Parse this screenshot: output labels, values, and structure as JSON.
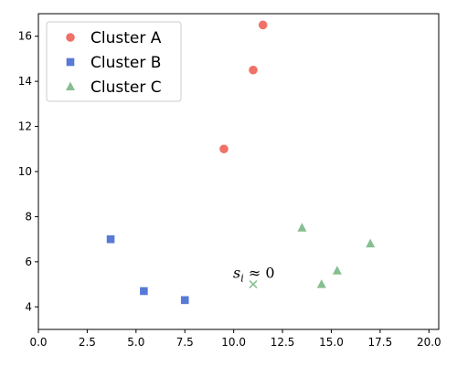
{
  "chart_data": {
    "type": "scatter",
    "title": "",
    "xlabel": "",
    "ylabel": "",
    "xlim": [
      0,
      20.5
    ],
    "ylim": [
      3,
      17
    ],
    "x_ticks": [
      0,
      2.5,
      5,
      7.5,
      10,
      12.5,
      15,
      17.5,
      20
    ],
    "x_tick_labels": [
      "0.0",
      "2.5",
      "5.0",
      "7.5",
      "10.0",
      "12.5",
      "15.0",
      "17.5",
      "20.0"
    ],
    "y_ticks": [
      4,
      6,
      8,
      10,
      12,
      14,
      16
    ],
    "y_tick_labels": [
      "4",
      "6",
      "8",
      "10",
      "12",
      "14",
      "16"
    ],
    "grid": false,
    "legend_position": "top-left",
    "series": [
      {
        "name": "Cluster A",
        "marker": "circle",
        "color": "#f07167",
        "points": [
          {
            "x": 11.5,
            "y": 16.5
          },
          {
            "x": 11.0,
            "y": 14.5
          },
          {
            "x": 9.5,
            "y": 11.0
          }
        ]
      },
      {
        "name": "Cluster B",
        "marker": "square",
        "color": "#5879d6",
        "points": [
          {
            "x": 3.7,
            "y": 7.0
          },
          {
            "x": 5.4,
            "y": 4.7
          },
          {
            "x": 7.5,
            "y": 4.3
          }
        ]
      },
      {
        "name": "Cluster C",
        "marker": "triangle",
        "color": "#86bf91",
        "points": [
          {
            "x": 13.5,
            "y": 7.5
          },
          {
            "x": 15.3,
            "y": 5.6
          },
          {
            "x": 17.0,
            "y": 6.8
          },
          {
            "x": 14.5,
            "y": 5.0
          }
        ]
      }
    ],
    "annotations": [
      {
        "label_main": "s",
        "label_sub": "i",
        "label_rest": " ≈ 0",
        "point": {
          "x": 11.0,
          "y": 5.0
        },
        "marker": "x",
        "color": "#86bf91"
      }
    ]
  }
}
